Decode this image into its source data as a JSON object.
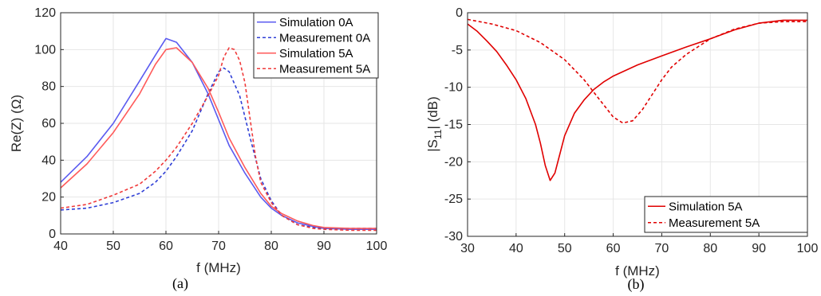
{
  "colors": {
    "sim0": "#5b5bf0",
    "meas0": "#2f3fd6",
    "sim5": "#ff5a5a",
    "meas5": "#f03a3a",
    "b_curve": "#e00000",
    "grid": "#e6e6e6",
    "axis": "#262626"
  },
  "chart_data": [
    {
      "type": "line",
      "panel_label": "(a)",
      "xlabel": "f (MHz)",
      "ylabel": "Re(Z) (Ω)",
      "xlim": [
        40,
        100
      ],
      "ylim": [
        0,
        120
      ],
      "xticks": [
        40,
        50,
        60,
        70,
        80,
        90,
        100
      ],
      "yticks": [
        0,
        20,
        40,
        60,
        80,
        100,
        120
      ],
      "grid": true,
      "legend_position": "top-right",
      "series": [
        {
          "name": "Simulation 0A",
          "style": "solid",
          "color_key": "sim0",
          "points": [
            [
              40,
              28
            ],
            [
              45,
              42
            ],
            [
              50,
              60
            ],
            [
              55,
              83
            ],
            [
              58,
              97
            ],
            [
              60,
              106
            ],
            [
              62,
              104
            ],
            [
              65,
              93
            ],
            [
              68,
              76
            ],
            [
              70,
              62
            ],
            [
              72,
              48
            ],
            [
              75,
              33
            ],
            [
              78,
              20
            ],
            [
              80,
              14
            ],
            [
              82,
              10
            ],
            [
              85,
              6
            ],
            [
              88,
              4
            ],
            [
              90,
              3
            ],
            [
              95,
              2.5
            ],
            [
              100,
              2.5
            ]
          ]
        },
        {
          "name": "Measurement 0A",
          "style": "dashed",
          "color_key": "meas0",
          "points": [
            [
              40,
              13
            ],
            [
              45,
              14
            ],
            [
              50,
              17
            ],
            [
              55,
              22
            ],
            [
              58,
              28
            ],
            [
              60,
              34
            ],
            [
              62,
              42
            ],
            [
              65,
              56
            ],
            [
              68,
              76
            ],
            [
              70,
              88
            ],
            [
              71,
              90
            ],
            [
              72,
              88
            ],
            [
              74,
              75
            ],
            [
              76,
              52
            ],
            [
              78,
              30
            ],
            [
              80,
              18
            ],
            [
              82,
              10
            ],
            [
              85,
              5
            ],
            [
              88,
              3.5
            ],
            [
              90,
              3
            ],
            [
              95,
              3
            ],
            [
              100,
              3
            ]
          ]
        },
        {
          "name": "Simulation 5A",
          "style": "solid",
          "color_key": "sim5",
          "points": [
            [
              40,
              25
            ],
            [
              45,
              38
            ],
            [
              50,
              55
            ],
            [
              55,
              76
            ],
            [
              58,
              92
            ],
            [
              60,
              100
            ],
            [
              62,
              101
            ],
            [
              65,
              93
            ],
            [
              68,
              79
            ],
            [
              70,
              66
            ],
            [
              72,
              52
            ],
            [
              75,
              36
            ],
            [
              78,
              22
            ],
            [
              80,
              15
            ],
            [
              82,
              11
            ],
            [
              85,
              7
            ],
            [
              88,
              4.5
            ],
            [
              90,
              3.5
            ],
            [
              95,
              3
            ],
            [
              100,
              3
            ]
          ]
        },
        {
          "name": "Measurement 5A",
          "style": "dashed",
          "color_key": "meas5",
          "points": [
            [
              40,
              14
            ],
            [
              45,
              16
            ],
            [
              50,
              21
            ],
            [
              55,
              27
            ],
            [
              58,
              34
            ],
            [
              60,
              40
            ],
            [
              62,
              47
            ],
            [
              65,
              60
            ],
            [
              68,
              75
            ],
            [
              70,
              86
            ],
            [
              71,
              96
            ],
            [
              72,
              101
            ],
            [
              73,
              100
            ],
            [
              74,
              94
            ],
            [
              75,
              82
            ],
            [
              76,
              62
            ],
            [
              77,
              42
            ],
            [
              78,
              28
            ],
            [
              80,
              17
            ],
            [
              82,
              10
            ],
            [
              85,
              5
            ],
            [
              88,
              3
            ],
            [
              90,
              2.5
            ],
            [
              95,
              2
            ],
            [
              100,
              2
            ]
          ]
        }
      ]
    },
    {
      "type": "line",
      "panel_label": "(b)",
      "xlabel": "f (MHz)",
      "ylabel_main": "|S",
      "ylabel_sub": "11",
      "ylabel_end": "| (dB)",
      "xlim": [
        30,
        100
      ],
      "ylim": [
        -30,
        0
      ],
      "xticks": [
        30,
        40,
        50,
        60,
        70,
        80,
        90,
        100
      ],
      "yticks": [
        0,
        -5,
        -10,
        -15,
        -20,
        -25,
        -30
      ],
      "grid": true,
      "legend_position": "bottom-right",
      "series": [
        {
          "name": "Simulation 5A",
          "style": "solid",
          "color_key": "b_curve",
          "points": [
            [
              30,
              -1.5
            ],
            [
              32,
              -2.5
            ],
            [
              34,
              -3.8
            ],
            [
              36,
              -5.2
            ],
            [
              38,
              -7
            ],
            [
              40,
              -9
            ],
            [
              42,
              -11.5
            ],
            [
              44,
              -15
            ],
            [
              45,
              -17.5
            ],
            [
              46,
              -20.5
            ],
            [
              47,
              -22.5
            ],
            [
              48,
              -21.5
            ],
            [
              49,
              -19
            ],
            [
              50,
              -16.5
            ],
            [
              52,
              -13.5
            ],
            [
              54,
              -11.7
            ],
            [
              56,
              -10.3
            ],
            [
              58,
              -9.3
            ],
            [
              60,
              -8.5
            ],
            [
              65,
              -7
            ],
            [
              70,
              -5.8
            ],
            [
              75,
              -4.6
            ],
            [
              80,
              -3.5
            ],
            [
              85,
              -2.3
            ],
            [
              90,
              -1.4
            ],
            [
              95,
              -1
            ],
            [
              100,
              -1
            ]
          ]
        },
        {
          "name": "Measurement 5A",
          "style": "dashed",
          "color_key": "b_curve",
          "points": [
            [
              30,
              -0.9
            ],
            [
              35,
              -1.5
            ],
            [
              40,
              -2.4
            ],
            [
              45,
              -4
            ],
            [
              50,
              -6.3
            ],
            [
              54,
              -9
            ],
            [
              57,
              -11.5
            ],
            [
              60,
              -14
            ],
            [
              62,
              -14.8
            ],
            [
              64,
              -14.5
            ],
            [
              66,
              -13
            ],
            [
              68,
              -11
            ],
            [
              70,
              -9
            ],
            [
              72,
              -7.3
            ],
            [
              75,
              -5.6
            ],
            [
              80,
              -3.5
            ],
            [
              85,
              -2.2
            ],
            [
              90,
              -1.4
            ],
            [
              95,
              -1.2
            ],
            [
              100,
              -1.2
            ]
          ]
        }
      ]
    }
  ]
}
